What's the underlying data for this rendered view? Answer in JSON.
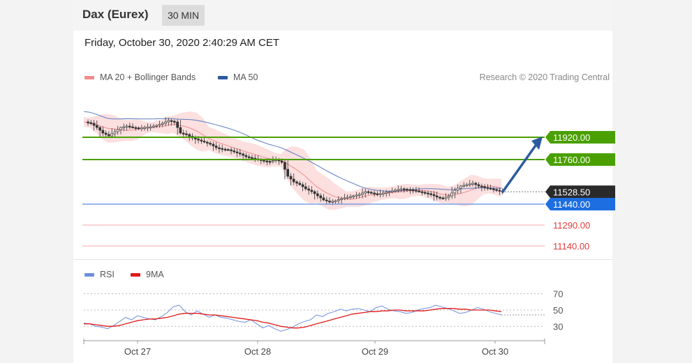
{
  "header": {
    "title": "Dax (Eurex)",
    "timeframe": "30 MIN"
  },
  "datetime": "Friday, October 30, 2020 2:40:29 AM CET",
  "legend": [
    {
      "label": "MA 20 + Bollinger Bands",
      "color": "#f28b8b"
    },
    {
      "label": "MA 50",
      "color": "#2c5aa0"
    }
  ],
  "credit": "Research © 2020 Trading Central",
  "rsi_legend": [
    {
      "label": "RSI",
      "color": "#6f8fde"
    },
    {
      "label": "9MA",
      "color": "#e11b1b"
    }
  ],
  "colors": {
    "green": "#4aa000",
    "blue": "#1d6ee0",
    "red": "#e23c3c",
    "dark": "#2a2a2a"
  },
  "chart_data": [
    {
      "type": "line",
      "title": "",
      "ylim": [
        11040,
        12240
      ],
      "levels": [
        {
          "value": 11920,
          "label": "11920.00",
          "style": "resistance"
        },
        {
          "value": 11760,
          "label": "11760.00",
          "style": "resistance"
        },
        {
          "value": 11528.5,
          "label": "11528.50",
          "style": "current"
        },
        {
          "value": 11440,
          "label": "11440.00",
          "style": "support-main"
        },
        {
          "value": 11290,
          "label": "11290.00",
          "style": "support"
        },
        {
          "value": 11140,
          "label": "11140.00",
          "style": "support"
        }
      ],
      "price_path": [
        12030,
        12020,
        11990,
        11950,
        11930,
        11960,
        11990,
        12000,
        11990,
        11985,
        11990,
        11995,
        12005,
        12020,
        12040,
        12030,
        11950,
        11940,
        11915,
        11900,
        11885,
        11870,
        11845,
        11835,
        11830,
        11815,
        11800,
        11780,
        11770,
        11760,
        11750,
        11745,
        11760,
        11740,
        11640,
        11600,
        11580,
        11550,
        11530,
        11500,
        11470,
        11455,
        11465,
        11480,
        11490,
        11500,
        11510,
        11530,
        11520,
        11510,
        11520,
        11530,
        11540,
        11550,
        11545,
        11540,
        11530,
        11520,
        11510,
        11490,
        11480,
        11500,
        11540,
        11570,
        11580,
        11590,
        11570,
        11560,
        11550,
        11540,
        11528
      ]
    },
    {
      "type": "line",
      "title": "",
      "ylim": [
        20,
        80
      ],
      "yticks": [
        70,
        50,
        30
      ],
      "x_ticks": [
        "Oct 27",
        "Oct 28",
        "Oct 29",
        "Oct 30"
      ],
      "series": [
        {
          "name": "RSI",
          "values": [
            34,
            33,
            30,
            29,
            27,
            31,
            36,
            41,
            38,
            43,
            41,
            39,
            38,
            42,
            47,
            54,
            56,
            48,
            44,
            49,
            45,
            41,
            44,
            41,
            40,
            38,
            36,
            35,
            38,
            33,
            28,
            31,
            27,
            24,
            26,
            29,
            33,
            36,
            38,
            44,
            42,
            46,
            48,
            51,
            49,
            51,
            52,
            50,
            48,
            53,
            55,
            51,
            49,
            48,
            46,
            47,
            50,
            52,
            53,
            56,
            54,
            52,
            49,
            46,
            47,
            50,
            53,
            51,
            48,
            46,
            44
          ]
        },
        {
          "name": "9MA",
          "values": [
            33,
            33,
            32,
            31,
            30,
            30,
            31,
            33,
            35,
            37,
            38,
            39,
            39,
            40,
            41,
            43,
            45,
            46,
            46,
            46,
            45,
            44,
            44,
            43,
            42,
            41,
            40,
            39,
            38,
            37,
            35,
            34,
            32,
            30,
            29,
            28,
            28,
            29,
            31,
            33,
            35,
            37,
            39,
            41,
            43,
            45,
            46,
            47,
            48,
            48,
            49,
            49,
            50,
            50,
            49,
            49,
            49,
            49,
            50,
            51,
            52,
            52,
            52,
            51,
            51,
            50,
            50,
            50,
            50,
            49,
            48
          ]
        }
      ]
    }
  ]
}
